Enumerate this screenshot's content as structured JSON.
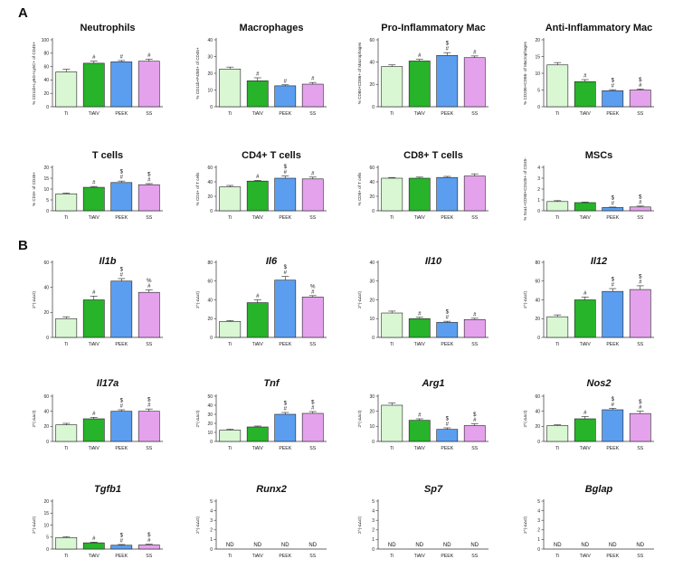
{
  "panel_labels": [
    "A",
    "B"
  ],
  "colors": {
    "Ti": "#d8f7d2",
    "TiAlV": "#27b32a",
    "PEEK": "#5b9ef0",
    "SS": "#e4a2ec"
  },
  "chart_data": [
    {
      "type": "bar",
      "panel": "A",
      "title": "Neutrophils",
      "title_italic": false,
      "ylabel": "% CD11b+Ly6G+Ly6C+ of CD45+",
      "ylim": [
        0,
        100
      ],
      "yticks": [
        0,
        20,
        40,
        60,
        80,
        100
      ],
      "categories": [
        "Ti",
        "TiAlV",
        "PEEK",
        "SS"
      ],
      "values": [
        52,
        65,
        67,
        68
      ],
      "errors": [
        4,
        3,
        2,
        3
      ],
      "annotations": [
        [],
        [
          "#"
        ],
        [
          "#"
        ],
        [
          "#"
        ]
      ]
    },
    {
      "type": "bar",
      "panel": "A",
      "title": "Macrophages",
      "title_italic": false,
      "ylabel": "% CD11b+F4/80+ of CD45+",
      "ylim": [
        0,
        40
      ],
      "yticks": [
        0,
        10,
        20,
        30,
        40
      ],
      "categories": [
        "Ti",
        "TiAlV",
        "PEEK",
        "SS"
      ],
      "values": [
        22.5,
        15.5,
        12.5,
        13.5
      ],
      "errors": [
        1.2,
        1.8,
        0.6,
        1
      ],
      "annotations": [
        [],
        [
          "#"
        ],
        [
          "#"
        ],
        [
          "#"
        ]
      ]
    },
    {
      "type": "bar",
      "panel": "A",
      "title": "Pro-Inflammatory Mac",
      "title_italic": false,
      "ylabel": "% CD80+CD86+ of Macrophages",
      "ylim": [
        0,
        60
      ],
      "yticks": [
        0,
        20,
        40,
        60
      ],
      "categories": [
        "Ti",
        "TiAlV",
        "PEEK",
        "SS"
      ],
      "values": [
        36,
        41,
        46,
        44
      ],
      "errors": [
        1.5,
        1.5,
        2.5,
        1.5
      ],
      "annotations": [
        [],
        [
          "#"
        ],
        [
          "#",
          "$"
        ],
        [
          "#"
        ]
      ]
    },
    {
      "type": "bar",
      "panel": "A",
      "title": "Anti-Inflammatory Mac",
      "title_italic": false,
      "ylabel": "% CD206+CD86- of Macrophages",
      "ylim": [
        0,
        20
      ],
      "yticks": [
        0,
        5,
        10,
        15,
        20
      ],
      "categories": [
        "Ti",
        "TiAlV",
        "PEEK",
        "SS"
      ],
      "values": [
        12.5,
        7.5,
        4.8,
        5
      ],
      "errors": [
        0.7,
        0.6,
        0.3,
        0.3
      ],
      "annotations": [
        [],
        [
          "#"
        ],
        [
          "#",
          "$"
        ],
        [
          "#",
          "$"
        ]
      ]
    },
    {
      "type": "bar",
      "panel": "A",
      "title": "T cells",
      "title_italic": false,
      "ylabel": "% CD3+ of CD45+",
      "ylim": [
        0,
        20
      ],
      "yticks": [
        0,
        5,
        10,
        15,
        20
      ],
      "categories": [
        "Ti",
        "TiAlV",
        "PEEK",
        "SS"
      ],
      "values": [
        7.8,
        10.8,
        13,
        12
      ],
      "errors": [
        0.4,
        0.4,
        0.7,
        0.5
      ],
      "annotations": [
        [],
        [
          "#"
        ],
        [
          "#",
          "$"
        ],
        [
          "#",
          "$"
        ]
      ]
    },
    {
      "type": "bar",
      "panel": "A",
      "title": "CD4+ T cells",
      "title_italic": false,
      "ylabel": "% CD4+ of T cells",
      "ylim": [
        0,
        60
      ],
      "yticks": [
        0,
        20,
        40,
        60
      ],
      "categories": [
        "Ti",
        "TiAlV",
        "PEEK",
        "SS"
      ],
      "values": [
        33,
        41,
        45,
        44
      ],
      "errors": [
        2,
        1,
        3,
        2.5
      ],
      "annotations": [
        [],
        [
          "#"
        ],
        [
          "#",
          "$"
        ],
        [
          "#"
        ]
      ]
    },
    {
      "type": "bar",
      "panel": "A",
      "title": "CD8+ T cells",
      "title_italic": false,
      "ylabel": "% CD8+ of T cells",
      "ylim": [
        0,
        60
      ],
      "yticks": [
        0,
        20,
        40,
        60
      ],
      "categories": [
        "Ti",
        "TiAlV",
        "PEEK",
        "SS"
      ],
      "values": [
        45,
        45,
        46,
        48
      ],
      "errors": [
        1,
        1.5,
        1.5,
        3
      ],
      "annotations": [
        [],
        [],
        [],
        []
      ]
    },
    {
      "type": "bar",
      "panel": "A",
      "title": "MSCs",
      "title_italic": false,
      "ylabel": "% Sca1+CD90+CD105+ of CD45-",
      "ylim": [
        0,
        4
      ],
      "yticks": [
        0,
        1,
        2,
        3,
        4
      ],
      "categories": [
        "Ti",
        "TiAlV",
        "PEEK",
        "SS"
      ],
      "values": [
        0.85,
        0.75,
        0.3,
        0.35
      ],
      "errors": [
        0.08,
        0.05,
        0.04,
        0.08
      ],
      "annotations": [
        [],
        [],
        [
          "#",
          "$"
        ],
        [
          "#",
          "$"
        ]
      ]
    },
    {
      "type": "bar",
      "panel": "B",
      "title": "Il1b",
      "title_italic": true,
      "ylabel": "2^(-ΔΔct)",
      "ylim": [
        0,
        60
      ],
      "yticks": [
        0,
        20,
        40,
        60
      ],
      "categories": [
        "Ti",
        "TiAlV",
        "PEEK",
        "SS"
      ],
      "values": [
        15,
        30,
        45,
        36
      ],
      "errors": [
        1.5,
        3,
        2,
        2
      ],
      "annotations": [
        [],
        [
          "#"
        ],
        [
          "#",
          "$"
        ],
        [
          "#",
          "%"
        ]
      ]
    },
    {
      "type": "bar",
      "panel": "B",
      "title": "Il6",
      "title_italic": true,
      "ylabel": "2^(-ΔΔct)",
      "ylim": [
        0,
        80
      ],
      "yticks": [
        0,
        20,
        40,
        60,
        80
      ],
      "categories": [
        "Ti",
        "TiAlV",
        "PEEK",
        "SS"
      ],
      "values": [
        17,
        37,
        61,
        43
      ],
      "errors": [
        1,
        3,
        4,
        1.5
      ],
      "annotations": [
        [],
        [
          "#"
        ],
        [
          "#",
          "$"
        ],
        [
          "#",
          "%"
        ]
      ]
    },
    {
      "type": "bar",
      "panel": "B",
      "title": "Il10",
      "title_italic": true,
      "ylabel": "2^(-ΔΔct)",
      "ylim": [
        0,
        40
      ],
      "yticks": [
        0,
        10,
        20,
        30,
        40
      ],
      "categories": [
        "Ti",
        "TiAlV",
        "PEEK",
        "SS"
      ],
      "values": [
        13,
        10,
        8,
        9.5
      ],
      "errors": [
        1,
        0.7,
        0.6,
        0.7
      ],
      "annotations": [
        [],
        [
          "#"
        ],
        [
          "#",
          "$"
        ],
        [
          "#"
        ]
      ]
    },
    {
      "type": "bar",
      "panel": "B",
      "title": "Il12",
      "title_italic": true,
      "ylabel": "2^(-ΔΔct)",
      "ylim": [
        0,
        80
      ],
      "yticks": [
        0,
        20,
        40,
        60,
        80
      ],
      "categories": [
        "Ti",
        "TiAlV",
        "PEEK",
        "SS"
      ],
      "values": [
        22,
        40,
        49,
        51
      ],
      "errors": [
        2,
        3,
        3,
        4
      ],
      "annotations": [
        [],
        [
          "#"
        ],
        [
          "#",
          "$"
        ],
        [
          "#",
          "$"
        ]
      ]
    },
    {
      "type": "bar",
      "panel": "B",
      "title": "Il17a",
      "title_italic": true,
      "ylabel": "2^(-ΔΔct)",
      "ylim": [
        0,
        60
      ],
      "yticks": [
        0,
        20,
        40,
        60
      ],
      "categories": [
        "Ti",
        "TiAlV",
        "PEEK",
        "SS"
      ],
      "values": [
        22,
        30,
        40,
        40
      ],
      "errors": [
        2,
        2,
        2,
        3
      ],
      "annotations": [
        [],
        [
          "#"
        ],
        [
          "#",
          "$"
        ],
        [
          "#",
          "$"
        ]
      ]
    },
    {
      "type": "bar",
      "panel": "B",
      "title": "Tnf",
      "title_italic": true,
      "ylabel": "2^(-ΔΔct)",
      "ylim": [
        0,
        50
      ],
      "yticks": [
        0,
        10,
        20,
        30,
        40,
        50
      ],
      "categories": [
        "Ti",
        "TiAlV",
        "PEEK",
        "SS"
      ],
      "values": [
        12.5,
        16,
        30,
        31
      ],
      "errors": [
        1,
        1,
        2,
        2
      ],
      "annotations": [
        [],
        [],
        [
          "#",
          "$"
        ],
        [
          "#",
          "$"
        ]
      ]
    },
    {
      "type": "bar",
      "panel": "B",
      "title": "Arg1",
      "title_italic": true,
      "ylabel": "2^(-ΔΔct)",
      "ylim": [
        0,
        30
      ],
      "yticks": [
        0,
        10,
        20,
        30
      ],
      "categories": [
        "Ti",
        "TiAlV",
        "PEEK",
        "SS"
      ],
      "values": [
        24,
        14,
        8,
        10.5
      ],
      "errors": [
        1.5,
        1,
        1,
        1.2
      ],
      "annotations": [
        [],
        [
          "#"
        ],
        [
          "#",
          "$"
        ],
        [
          "#",
          "$"
        ]
      ]
    },
    {
      "type": "bar",
      "panel": "B",
      "title": "Nos2",
      "title_italic": true,
      "ylabel": "2^(-ΔΔct)",
      "ylim": [
        0,
        60
      ],
      "yticks": [
        0,
        20,
        40,
        60
      ],
      "categories": [
        "Ti",
        "TiAlV",
        "PEEK",
        "SS"
      ],
      "values": [
        21,
        30,
        42,
        37
      ],
      "errors": [
        1,
        3,
        2,
        3
      ],
      "annotations": [
        [],
        [
          "#"
        ],
        [
          "#",
          "$"
        ],
        [
          "#",
          "$"
        ]
      ]
    },
    {
      "type": "bar",
      "panel": "B",
      "title": "Tgfb1",
      "title_italic": true,
      "ylabel": "2^(-ΔΔct)",
      "ylim": [
        0,
        20
      ],
      "yticks": [
        0,
        5,
        10,
        15,
        20
      ],
      "categories": [
        "Ti",
        "TiAlV",
        "PEEK",
        "SS"
      ],
      "values": [
        4.8,
        2.6,
        1.6,
        1.7
      ],
      "errors": [
        0.4,
        0.3,
        0.3,
        0.3
      ],
      "annotations": [
        [],
        [
          "#"
        ],
        [
          "#",
          "$"
        ],
        [
          "#",
          "$"
        ]
      ]
    },
    {
      "type": "bar",
      "panel": "B",
      "title": "Runx2",
      "title_italic": true,
      "ylabel": "2^(-ΔΔct)",
      "ylim": [
        0,
        5
      ],
      "yticks": [
        0,
        1,
        2,
        3,
        4,
        5
      ],
      "categories": [
        "Ti",
        "TiAlV",
        "PEEK",
        "SS"
      ],
      "values": [
        null,
        null,
        null,
        null
      ],
      "errors": [
        null,
        null,
        null,
        null
      ],
      "labels": [
        "ND",
        "ND",
        "ND",
        "ND"
      ],
      "annotations": [
        [],
        [],
        [],
        []
      ]
    },
    {
      "type": "bar",
      "panel": "B",
      "title": "Sp7",
      "title_italic": true,
      "ylabel": "2^(-ΔΔct)",
      "ylim": [
        0,
        5
      ],
      "yticks": [
        0,
        1,
        2,
        3,
        4,
        5
      ],
      "categories": [
        "Ti",
        "TiAlV",
        "PEEK",
        "SS"
      ],
      "values": [
        null,
        null,
        null,
        null
      ],
      "errors": [
        null,
        null,
        null,
        null
      ],
      "labels": [
        "ND",
        "ND",
        "ND",
        "ND"
      ],
      "annotations": [
        [],
        [],
        [],
        []
      ]
    },
    {
      "type": "bar",
      "panel": "B",
      "title": "Bglap",
      "title_italic": true,
      "ylabel": "2^(-ΔΔct)",
      "ylim": [
        0,
        5
      ],
      "yticks": [
        0,
        1,
        2,
        3,
        4,
        5
      ],
      "categories": [
        "Ti",
        "TiAlV",
        "PEEK",
        "SS"
      ],
      "values": [
        null,
        null,
        null,
        null
      ],
      "errors": [
        null,
        null,
        null,
        null
      ],
      "labels": [
        "ND",
        "ND",
        "ND",
        "ND"
      ],
      "annotations": [
        [],
        [],
        [],
        []
      ]
    }
  ]
}
